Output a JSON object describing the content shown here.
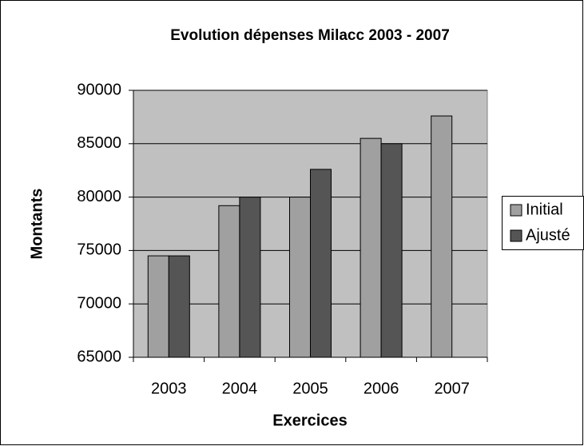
{
  "chart_data": {
    "type": "bar",
    "title": "Evolution dépenses Milacc 2003 - 2007",
    "x_label": "Exercices",
    "y_label": "Montants",
    "categories": [
      "2003",
      "2004",
      "2005",
      "2006",
      "2007"
    ],
    "series": [
      {
        "name": "Initial",
        "color": "#a0a0a0",
        "values": [
          74500,
          79200,
          80000,
          85500,
          87600
        ]
      },
      {
        "name": "Ajusté",
        "color": "#555555",
        "values": [
          74500,
          80000,
          82600,
          85000,
          null
        ]
      }
    ],
    "ylim": [
      65000,
      90000
    ],
    "yticks": [
      65000,
      70000,
      75000,
      80000,
      85000,
      90000
    ],
    "grid": true,
    "legend": "right"
  }
}
